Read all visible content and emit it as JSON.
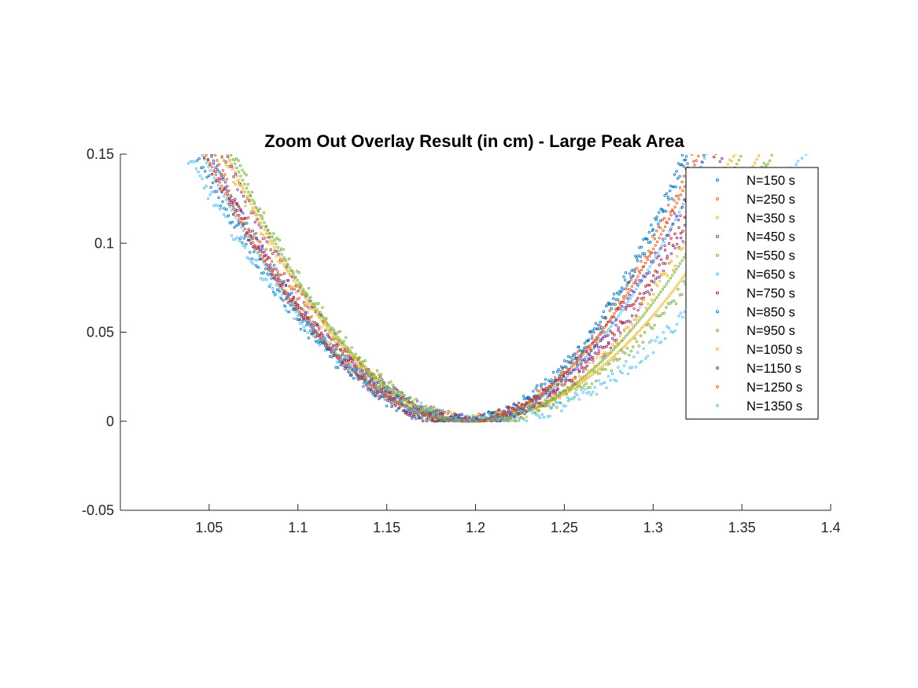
{
  "chart_data": {
    "type": "scatter",
    "title": "Zoom Out Overlay Result (in cm) - Large Peak Area",
    "xlabel": "",
    "ylabel": "",
    "xlim": [
      1.0,
      1.4
    ],
    "ylim": [
      -0.05,
      0.15
    ],
    "xticks": [
      1.05,
      1.1,
      1.15,
      1.2,
      1.25,
      1.3,
      1.35,
      1.4
    ],
    "xtick_labels": [
      "1.05",
      "1.1",
      "1.15",
      "1.2",
      "1.25",
      "1.3",
      "1.35",
      "1.4"
    ],
    "yticks": [
      -0.05,
      0,
      0.05,
      0.1,
      0.15
    ],
    "ytick_labels": [
      "-0.05",
      "0",
      "0.05",
      "0.1",
      "0.15"
    ],
    "grid": false,
    "legend_position": "top-right",
    "marker": "circle",
    "series": [
      {
        "name": "N=150 s",
        "color": "#0072BD",
        "vertex_x": 1.195,
        "left_x_at_top": 1.05,
        "right_x_at_top": 1.318
      },
      {
        "name": "N=250 s",
        "color": "#D95319",
        "vertex_x": 1.196,
        "left_x_at_top": 1.052,
        "right_x_at_top": 1.323
      },
      {
        "name": "N=350 s",
        "color": "#EDB120",
        "vertex_x": 1.198,
        "left_x_at_top": 1.06,
        "right_x_at_top": 1.36
      },
      {
        "name": "N=450 s",
        "color": "#7E2F8E",
        "vertex_x": 1.199,
        "left_x_at_top": 1.058,
        "right_x_at_top": 1.34
      },
      {
        "name": "N=550 s",
        "color": "#77AC30",
        "vertex_x": 1.2,
        "left_x_at_top": 1.064,
        "right_x_at_top": 1.366
      },
      {
        "name": "N=650 s",
        "color": "#4DBEEE",
        "vertex_x": 1.197,
        "left_x_at_top": 1.046,
        "right_x_at_top": 1.33
      },
      {
        "name": "N=750 s",
        "color": "#A2142F",
        "vertex_x": 1.194,
        "left_x_at_top": 1.048,
        "right_x_at_top": 1.337
      },
      {
        "name": "N=850 s",
        "color": "#0072BD",
        "vertex_x": 1.193,
        "left_x_at_top": 1.043,
        "right_x_at_top": 1.32
      },
      {
        "name": "N=950 s",
        "color": "#77AC30",
        "vertex_x": 1.2,
        "left_x_at_top": 1.062,
        "right_x_at_top": 1.35
      },
      {
        "name": "N=1050 s",
        "color": "#EDB120",
        "vertex_x": 1.199,
        "left_x_at_top": 1.058,
        "right_x_at_top": 1.345
      },
      {
        "name": "N=1150 s",
        "color": "#7E2F8E",
        "vertex_x": 1.196,
        "left_x_at_top": 1.05,
        "right_x_at_top": 1.33
      },
      {
        "name": "N=1250 s",
        "color": "#D95319",
        "vertex_x": 1.195,
        "left_x_at_top": 1.048,
        "right_x_at_top": 1.326
      },
      {
        "name": "N=1350 s",
        "color": "#4DBEEE",
        "vertex_x": 1.205,
        "left_x_at_top": 1.037,
        "right_x_at_top": 1.384
      }
    ]
  }
}
